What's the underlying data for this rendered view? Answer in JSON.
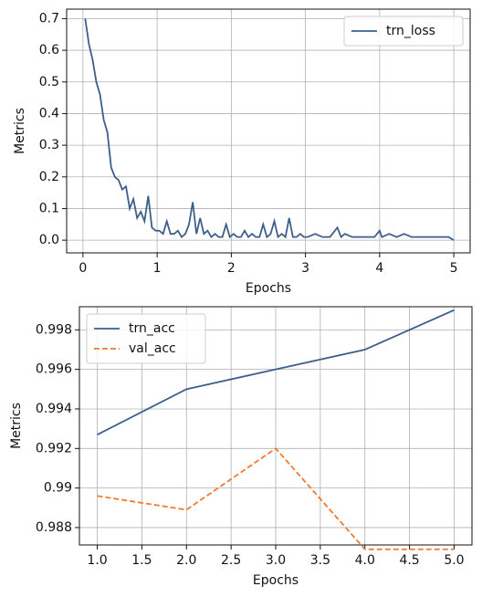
{
  "chart_data": [
    {
      "type": "line",
      "xlabel": "Epochs",
      "ylabel": "Metrics",
      "xlim": [
        -0.22,
        5.22
      ],
      "ylim": [
        -0.04,
        0.73
      ],
      "xticks": [
        0,
        1,
        2,
        3,
        4,
        5
      ],
      "yticks": [
        {
          "value": 0,
          "label": "0.0"
        },
        0.1,
        0.2,
        0.3,
        0.4,
        0.5,
        0.6,
        0.7
      ],
      "grid": true,
      "legend": "upper right",
      "x": [
        0.03,
        0.08,
        0.13,
        0.18,
        0.23,
        0.28,
        0.33,
        0.38,
        0.43,
        0.48,
        0.53,
        0.58,
        0.63,
        0.68,
        0.73,
        0.78,
        0.83,
        0.88,
        0.93,
        0.98,
        1.03,
        1.08,
        1.13,
        1.18,
        1.23,
        1.28,
        1.33,
        1.38,
        1.43,
        1.48,
        1.53,
        1.58,
        1.63,
        1.68,
        1.73,
        1.78,
        1.83,
        1.88,
        1.93,
        1.98,
        2.03,
        2.08,
        2.13,
        2.18,
        2.23,
        2.28,
        2.33,
        2.38,
        2.43,
        2.48,
        2.53,
        2.58,
        2.63,
        2.68,
        2.73,
        2.78,
        2.83,
        2.88,
        2.93,
        2.98,
        3.03,
        3.13,
        3.23,
        3.33,
        3.43,
        3.48,
        3.53,
        3.63,
        3.73,
        3.83,
        3.93,
        4.0,
        4.03,
        4.13,
        4.23,
        4.33,
        4.43,
        4.53,
        4.63,
        4.73,
        4.83,
        4.93,
        5.0
      ],
      "series": [
        {
          "name": "trn_loss",
          "color": "#3d5f8a",
          "dash": "solid",
          "values": [
            0.7,
            0.62,
            0.57,
            0.5,
            0.46,
            0.38,
            0.34,
            0.23,
            0.2,
            0.19,
            0.16,
            0.17,
            0.1,
            0.13,
            0.07,
            0.09,
            0.06,
            0.14,
            0.04,
            0.03,
            0.03,
            0.02,
            0.06,
            0.02,
            0.02,
            0.03,
            0.01,
            0.02,
            0.05,
            0.12,
            0.02,
            0.07,
            0.02,
            0.03,
            0.01,
            0.02,
            0.01,
            0.01,
            0.05,
            0.01,
            0.02,
            0.01,
            0.01,
            0.03,
            0.01,
            0.02,
            0.01,
            0.01,
            0.05,
            0.01,
            0.02,
            0.06,
            0.01,
            0.02,
            0.01,
            0.07,
            0.01,
            0.01,
            0.02,
            0.01,
            0.01,
            0.02,
            0.01,
            0.01,
            0.04,
            0.01,
            0.02,
            0.01,
            0.01,
            0.01,
            0.01,
            0.03,
            0.01,
            0.02,
            0.01,
            0.02,
            0.01,
            0.01,
            0.01,
            0.01,
            0.01,
            0.01,
            0.0
          ]
        }
      ]
    },
    {
      "type": "line",
      "xlabel": "Epochs",
      "ylabel": "Metrics",
      "xlim": [
        0.8,
        5.2
      ],
      "ylim": [
        0.98712,
        0.99917
      ],
      "xticks": [
        {
          "value": 1,
          "label": "1.0"
        },
        1.5,
        {
          "value": 2,
          "label": "2.0"
        },
        2.5,
        {
          "value": 3,
          "label": "3.0"
        },
        3.5,
        {
          "value": 4,
          "label": "4.0"
        },
        4.5,
        {
          "value": 5,
          "label": "5.0"
        }
      ],
      "yticks": [
        0.988,
        0.99,
        0.992,
        0.994,
        0.996,
        0.998
      ],
      "grid": true,
      "legend": "upper left",
      "x": [
        1,
        2,
        3,
        4,
        5
      ],
      "series": [
        {
          "name": "trn_acc",
          "color": "#3d5f8a",
          "dash": "solid",
          "values": [
            0.9927,
            0.995,
            0.996,
            0.997,
            0.999
          ]
        },
        {
          "name": "val_acc",
          "color": "#f07a30",
          "dash": "dashed",
          "values": [
            0.9896,
            0.9889,
            0.992,
            0.9869,
            0.9869
          ]
        }
      ]
    }
  ]
}
